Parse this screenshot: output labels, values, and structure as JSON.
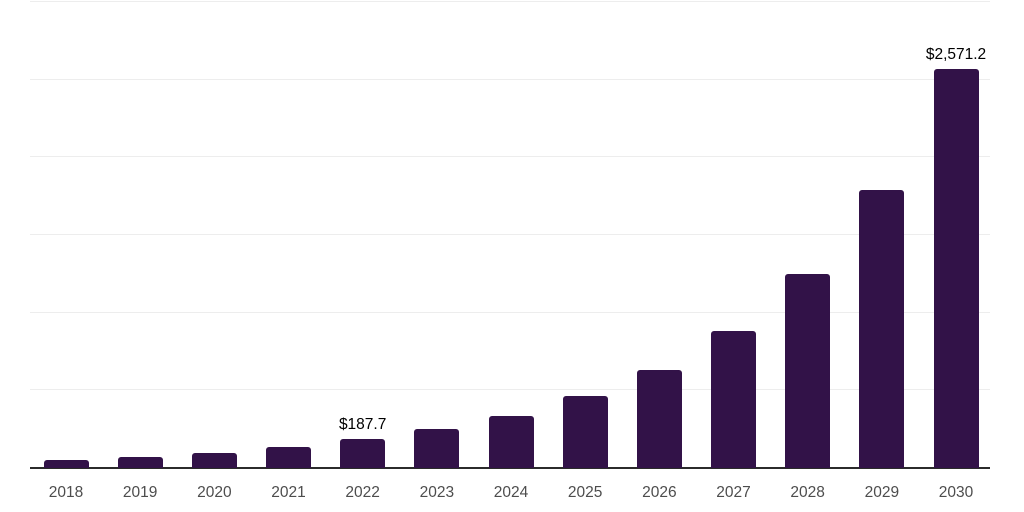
{
  "chart_data": {
    "type": "bar",
    "title": "",
    "xlabel": "",
    "ylabel": "",
    "categories": [
      "2018",
      "2019",
      "2020",
      "2021",
      "2022",
      "2023",
      "2024",
      "2025",
      "2026",
      "2027",
      "2028",
      "2029",
      "2030"
    ],
    "values": [
      52,
      70,
      96,
      135,
      187.7,
      248,
      334,
      462,
      633,
      880,
      1251,
      1790,
      2571.2
    ],
    "annotations": [
      {
        "category": "2022",
        "text": "$187.7"
      },
      {
        "category": "2030",
        "text": "$2,571.2"
      }
    ],
    "ylim": [
      0,
      3000
    ],
    "gridline_step": 500,
    "grid": "horizontal-only",
    "legend": "none",
    "colors": {
      "bar": "#321248",
      "gridline": "#ededed",
      "axis_line": "#2b2b2b",
      "tick_label": "#4d4d4d",
      "value_label": "#000000",
      "background": "#ffffff"
    }
  }
}
